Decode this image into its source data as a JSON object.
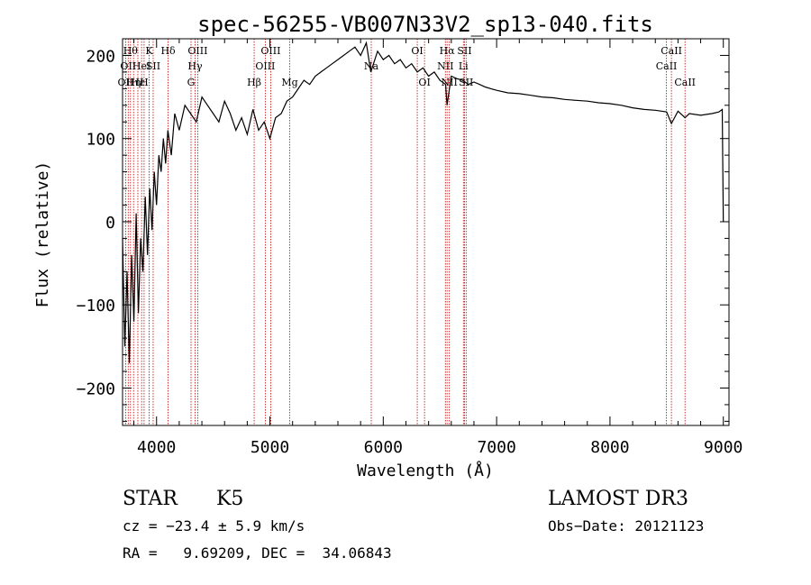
{
  "chart_data": {
    "type": "line",
    "title": "spec-56255-VB007N33V2_sp13-040.fits",
    "xlabel": "Wavelength (Å)",
    "ylabel": "Flux (relative)",
    "xlim": [
      3700,
      9050
    ],
    "ylim": [
      -245,
      220
    ],
    "x_ticks": [
      4000,
      5000,
      6000,
      7000,
      8000,
      9000
    ],
    "x_tick_labels": [
      "4000",
      "5000",
      "6000",
      "7000",
      "8000",
      "9000"
    ],
    "y_ticks": [
      -200,
      -100,
      0,
      100,
      200
    ],
    "y_tick_labels": [
      "−200",
      "−100",
      "0",
      "100",
      "200"
    ],
    "series": [
      {
        "name": "flux",
        "x": [
          3700,
          3720,
          3740,
          3760,
          3780,
          3800,
          3820,
          3840,
          3860,
          3880,
          3900,
          3920,
          3940,
          3960,
          3980,
          4000,
          4020,
          4040,
          4060,
          4080,
          4100,
          4130,
          4160,
          4200,
          4250,
          4300,
          4350,
          4400,
          4450,
          4500,
          4550,
          4600,
          4650,
          4700,
          4750,
          4800,
          4850,
          4900,
          4950,
          5000,
          5050,
          5100,
          5150,
          5200,
          5250,
          5300,
          5350,
          5400,
          5450,
          5500,
          5550,
          5600,
          5650,
          5700,
          5750,
          5800,
          5850,
          5890,
          5950,
          6000,
          6050,
          6100,
          6150,
          6200,
          6250,
          6300,
          6350,
          6400,
          6450,
          6500,
          6550,
          6563,
          6600,
          6650,
          6700,
          6750,
          6800,
          6850,
          6900,
          6950,
          7000,
          7100,
          7200,
          7300,
          7400,
          7500,
          7600,
          7700,
          7800,
          7900,
          8000,
          8100,
          8200,
          8300,
          8400,
          8500,
          8542,
          8600,
          8662,
          8700,
          8800,
          8900,
          8960,
          8990,
          9000
        ],
        "y": [
          -20,
          -150,
          -60,
          -170,
          -40,
          -120,
          10,
          -110,
          -20,
          -60,
          30,
          -40,
          40,
          -10,
          60,
          20,
          80,
          60,
          100,
          70,
          110,
          80,
          130,
          110,
          140,
          130,
          120,
          150,
          140,
          130,
          120,
          145,
          130,
          110,
          125,
          105,
          135,
          110,
          120,
          100,
          125,
          130,
          145,
          150,
          160,
          170,
          165,
          175,
          180,
          185,
          190,
          195,
          200,
          205,
          210,
          200,
          215,
          180,
          205,
          195,
          200,
          190,
          195,
          185,
          190,
          180,
          185,
          175,
          180,
          170,
          165,
          140,
          175,
          172,
          170,
          165,
          168,
          165,
          162,
          160,
          158,
          155,
          154,
          152,
          150,
          149,
          147,
          146,
          145,
          143,
          142,
          140,
          137,
          135,
          134,
          132,
          118,
          133,
          125,
          130,
          128,
          130,
          132,
          135,
          0
        ]
      }
    ],
    "line_markers": [
      {
        "x": 3727,
        "label": "OII",
        "row": 2
      },
      {
        "x": 3750,
        "label": "OII",
        "row": 1
      },
      {
        "x": 3770,
        "label": "Hθ",
        "row": 0
      },
      {
        "x": 3797,
        "label": "Hη",
        "row": 2
      },
      {
        "x": 3835,
        "label": "Hε",
        "row": 2
      },
      {
        "x": 3868,
        "label": "HeI",
        "row": 1
      },
      {
        "x": 3890,
        "label": "H",
        "row": 2
      },
      {
        "x": 3934,
        "label": "K",
        "row": 0
      },
      {
        "x": 3970,
        "label": "SII",
        "row": 1
      },
      {
        "x": 4102,
        "label": "Hδ",
        "row": 0
      },
      {
        "x": 4304,
        "label": "G",
        "row": 2
      },
      {
        "x": 4340,
        "label": "Hγ",
        "row": 1
      },
      {
        "x": 4363,
        "label": "OIII",
        "row": 0
      },
      {
        "x": 4861,
        "label": "Hβ",
        "row": 2
      },
      {
        "x": 4959,
        "label": "OIII",
        "row": 1
      },
      {
        "x": 5007,
        "label": "OIII",
        "row": 0
      },
      {
        "x": 5175,
        "label": "Mg",
        "row": 2
      },
      {
        "x": 5894,
        "label": "Na",
        "row": 1
      },
      {
        "x": 6300,
        "label": "OI",
        "row": 0
      },
      {
        "x": 6364,
        "label": "OI",
        "row": 2
      },
      {
        "x": 6548,
        "label": "NII",
        "row": 1
      },
      {
        "x": 6563,
        "label": "Hα",
        "row": 0
      },
      {
        "x": 6583,
        "label": "NII",
        "row": 2
      },
      {
        "x": 6707,
        "label": "Li",
        "row": 1
      },
      {
        "x": 6717,
        "label": "SII",
        "row": 0
      },
      {
        "x": 6731,
        "label": "SII",
        "row": 2
      },
      {
        "x": 8498,
        "label": "CaII",
        "row": 1
      },
      {
        "x": 8542,
        "label": "CaII",
        "row": 0
      },
      {
        "x": 8662,
        "label": "CaII",
        "row": 2
      }
    ],
    "marker_color": "#c00000",
    "line_color": "#000000",
    "grid": false,
    "legend": "none"
  },
  "info": {
    "object_class": "STAR",
    "subclass": "K5",
    "survey": "LAMOST DR3",
    "redshift": "cz = −23.4 ± 5.9 km/s",
    "obs_date": "Obs−Date: 20121123",
    "coords": "RA =   9.69209, DEC =  34.06843"
  }
}
